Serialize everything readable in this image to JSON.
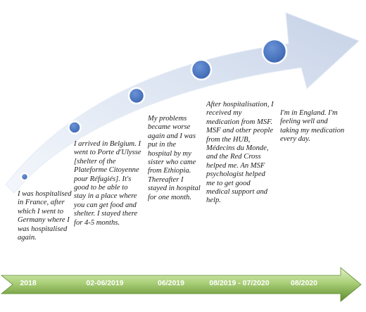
{
  "colors": {
    "arrow_light": "#f2f5fb",
    "arrow_dark": "#c9d4e8",
    "dot_fill": "#4472c4",
    "dot_stroke": "#ffffff",
    "timeline_light": "#d9efb7",
    "timeline_dark": "#6f9c3b",
    "timeline_text": "#ffffff"
  },
  "steps": [
    {
      "text": "I was hospitalised in France, after which I went to Germany where I was hospitalised again."
    },
    {
      "text": "I arrived in Belgium. I went to Porte d'Ulysse [shelter of the Plateforme Citoyenne pour Réfugiés]. It's good to be able to stay in a place where you can get food and shelter. I stayed there for 4-5 months."
    },
    {
      "text": "My problems became worse again and I was put in the hospital by my sister who came from Ethiopia. Thereafter I stayed in hospital for one month."
    },
    {
      "text": "After hospitalisation, I received my medication from MSF. MSF and other people from the HUB, Médecins du Monde, and the Red Cross helped me. An MSF psychologist helped me to get good medical support and help."
    },
    {
      "text": "I'm in England. I'm feeling well and taking my medication every day."
    }
  ],
  "timeline": [
    {
      "label": "2018"
    },
    {
      "label": "02-06/2019"
    },
    {
      "label": "06/2019"
    },
    {
      "label": "08/2019 - 07/2020"
    },
    {
      "label": "08/2020"
    }
  ]
}
